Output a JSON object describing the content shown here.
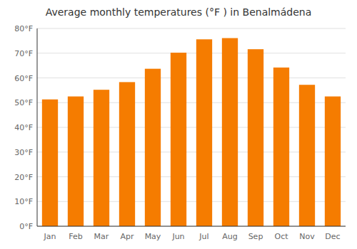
{
  "chart_data": {
    "type": "bar",
    "title": "Average monthly temperatures (°F ) in Benalmádena",
    "categories": [
      "Jan",
      "Feb",
      "Mar",
      "Apr",
      "May",
      "Jun",
      "Jul",
      "Aug",
      "Sep",
      "Oct",
      "Nov",
      "Dec"
    ],
    "values": [
      51.3,
      52.5,
      55.2,
      58.3,
      63.7,
      70.2,
      75.6,
      76.1,
      71.6,
      64.2,
      57.2,
      52.5
    ],
    "color": "#F57C00",
    "ylim": [
      0,
      80
    ],
    "yticks": [
      {
        "value": 0,
        "label": "0°F"
      },
      {
        "value": 10,
        "label": "10°F"
      },
      {
        "value": 20,
        "label": "20°F"
      },
      {
        "value": 30,
        "label": "30°F"
      },
      {
        "value": 40,
        "label": "40°F"
      },
      {
        "value": 50,
        "label": "50°F"
      },
      {
        "value": 60,
        "label": "60°F"
      },
      {
        "value": 70,
        "label": "70°F"
      },
      {
        "value": 80,
        "label": "80°F"
      }
    ],
    "grid": true
  }
}
